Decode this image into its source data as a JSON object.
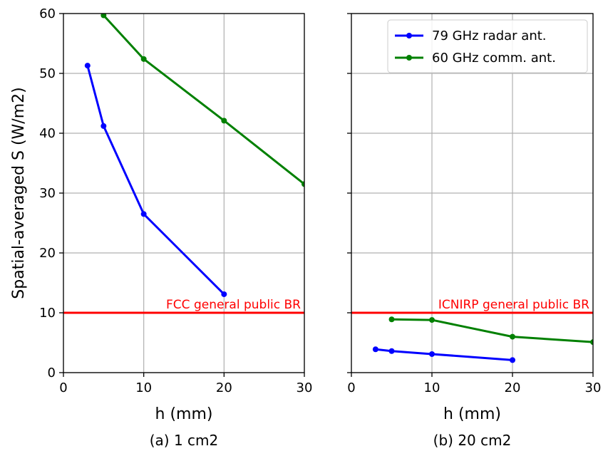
{
  "figure": {
    "ylabel": "Spatial-averaged S (W/m2)",
    "colors": {
      "radar": "#0000ff",
      "comm": "#008000",
      "limit": "#ff0000",
      "grid": "#b0b0b0",
      "axis": "#000000"
    }
  },
  "chart_data": [
    {
      "type": "line",
      "caption": "(a) 1 cm2",
      "xlabel": "h (mm)",
      "ylabel": "Spatial-averaged S (W/m2)",
      "xlim": [
        0,
        30
      ],
      "ylim": [
        0,
        60
      ],
      "xticks": [
        0,
        10,
        20,
        30
      ],
      "yticks": [
        0,
        10,
        20,
        30,
        40,
        50,
        60
      ],
      "grid": true,
      "legend": "none",
      "series": [
        {
          "name": "79 GHz radar ant.",
          "color": "#0000ff",
          "x": [
            3,
            5,
            10,
            20
          ],
          "y": [
            51.3,
            41.2,
            26.5,
            13.1
          ]
        },
        {
          "name": "60 GHz comm. ant.",
          "color": "#008000",
          "x": [
            5,
            10,
            20,
            30
          ],
          "y": [
            59.7,
            52.4,
            42.1,
            31.5
          ]
        }
      ],
      "reference_line": {
        "y": 10,
        "label": "FCC general public BR",
        "color": "#ff0000"
      }
    },
    {
      "type": "line",
      "caption": "(b) 20 cm2",
      "xlabel": "h (mm)",
      "xlim": [
        0,
        30
      ],
      "ylim": [
        0,
        60
      ],
      "xticks": [
        0,
        10,
        20,
        30
      ],
      "yticks": [
        0,
        10,
        20,
        30,
        40,
        50,
        60
      ],
      "grid": true,
      "legend": "top-right",
      "series": [
        {
          "name": "79 GHz radar ant.",
          "color": "#0000ff",
          "x": [
            3,
            5,
            10,
            20
          ],
          "y": [
            3.9,
            3.6,
            3.1,
            2.1
          ]
        },
        {
          "name": "60 GHz comm. ant.",
          "color": "#008000",
          "x": [
            5,
            10,
            20,
            30
          ],
          "y": [
            8.9,
            8.8,
            6.0,
            5.1
          ]
        }
      ],
      "reference_line": {
        "y": 10,
        "label": "ICNIRP general public BR",
        "color": "#ff0000"
      }
    }
  ]
}
